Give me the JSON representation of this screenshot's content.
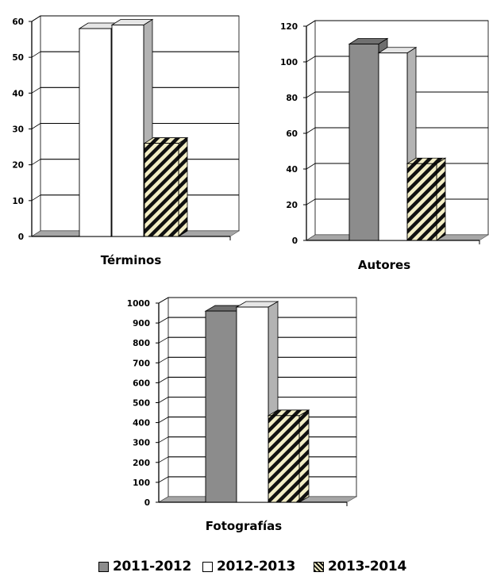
{
  "colors": {
    "series_2011": "#8c8c8c",
    "series_2012": "#ffffff",
    "series_2013_stripe_a": "#111111",
    "series_2013_stripe_b": "#f2edc5",
    "axis": "#000000",
    "floor": "#a6a6a6",
    "side": "#b3b3b3"
  },
  "legend": {
    "items": [
      {
        "label": "2011-2012",
        "swatch": "solid-gray"
      },
      {
        "label": "2012-2013",
        "swatch": "white"
      },
      {
        "label": "2013-2014",
        "swatch": "hatched"
      }
    ]
  },
  "chart_data": [
    {
      "type": "bar",
      "title": "Términos",
      "series": [
        {
          "name": "2011-2012",
          "values": [
            0
          ]
        },
        {
          "name": "2012-2013",
          "values": [
            58
          ]
        },
        {
          "name": "2013-2014",
          "values": [
            59
          ]
        },
        {
          "name": "2013-2014 (hatched)",
          "values": [
            26
          ]
        }
      ],
      "ylim": [
        0,
        60
      ],
      "yticks": [
        0,
        10,
        20,
        30,
        40,
        50,
        60
      ],
      "grid": true,
      "legend": "bottom"
    },
    {
      "type": "bar",
      "title": "Autores",
      "series": [
        {
          "name": "2011-2012",
          "values": [
            110
          ]
        },
        {
          "name": "2012-2013",
          "values": [
            105
          ]
        },
        {
          "name": "2013-2014",
          "values": [
            43
          ]
        }
      ],
      "ylim": [
        0,
        120
      ],
      "yticks": [
        0,
        20,
        40,
        60,
        80,
        100,
        120
      ],
      "grid": true,
      "legend": "bottom"
    },
    {
      "type": "bar",
      "title": "Fotografías",
      "series": [
        {
          "name": "2011-2012",
          "values": [
            960
          ]
        },
        {
          "name": "2012-2013",
          "values": [
            980
          ]
        },
        {
          "name": "2013-2014",
          "values": [
            435
          ]
        }
      ],
      "ylim": [
        0,
        1000
      ],
      "yticks": [
        0,
        100,
        200,
        300,
        400,
        500,
        600,
        700,
        800,
        900,
        1000
      ],
      "grid": true,
      "legend": "bottom"
    }
  ]
}
